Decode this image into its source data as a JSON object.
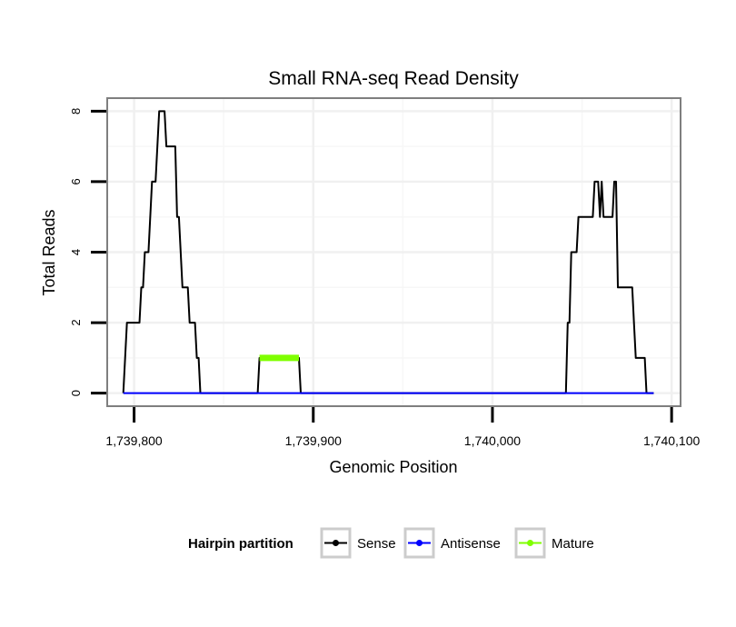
{
  "chart_data": {
    "type": "line",
    "title": "Small RNA-seq Read Density",
    "xlabel": "Genomic Position",
    "ylabel": "Total Reads",
    "xlim": [
      1739785,
      1740105
    ],
    "ylim": [
      -0.37,
      8.37
    ],
    "x_ticks": [
      1739800,
      1739900,
      1740000,
      1740100
    ],
    "x_tick_labels": [
      "1,739,800",
      "1,739,900",
      "1,740,000",
      "1,740,100"
    ],
    "y_ticks": [
      0,
      2,
      4,
      6,
      8
    ],
    "y_tick_labels": [
      "0",
      "2",
      "4",
      "6",
      "8"
    ],
    "grid": true,
    "legend": {
      "title": "Hairpin partition",
      "position": "bottom",
      "entries": [
        "Sense",
        "Antisense",
        "Mature"
      ]
    },
    "series": [
      {
        "name": "Sense",
        "color": "#000000",
        "points": [
          [
            1739794,
            0
          ],
          [
            1739795,
            1
          ],
          [
            1739796,
            2
          ],
          [
            1739798,
            2
          ],
          [
            1739803,
            2
          ],
          [
            1739804,
            3
          ],
          [
            1739805,
            3
          ],
          [
            1739806,
            4
          ],
          [
            1739808,
            4
          ],
          [
            1739810,
            6
          ],
          [
            1739812,
            6
          ],
          [
            1739813,
            7
          ],
          [
            1739814,
            8
          ],
          [
            1739817,
            8
          ],
          [
            1739818,
            7
          ],
          [
            1739823,
            7
          ],
          [
            1739824,
            5
          ],
          [
            1739825,
            5
          ],
          [
            1739827,
            3
          ],
          [
            1739830,
            3
          ],
          [
            1739831,
            2
          ],
          [
            1739834,
            2
          ],
          [
            1739835,
            1
          ],
          [
            1739836,
            1
          ],
          [
            1739837,
            0
          ],
          [
            1739869,
            0
          ],
          [
            1739870,
            1
          ],
          [
            1739892,
            1
          ],
          [
            1739893,
            0
          ],
          [
            1740041,
            0
          ],
          [
            1740042,
            2
          ],
          [
            1740043,
            2
          ],
          [
            1740044,
            4
          ],
          [
            1740047,
            4
          ],
          [
            1740048,
            5
          ],
          [
            1740056,
            5
          ],
          [
            1740057,
            6
          ],
          [
            1740059,
            6
          ],
          [
            1740060,
            5
          ],
          [
            1740061,
            6
          ],
          [
            1740062,
            5
          ],
          [
            1740067,
            5
          ],
          [
            1740068,
            6
          ],
          [
            1740069,
            6
          ],
          [
            1740070,
            3
          ],
          [
            1740078,
            3
          ],
          [
            1740079,
            2
          ],
          [
            1740080,
            1
          ],
          [
            1740085,
            1
          ],
          [
            1740086,
            0
          ],
          [
            1740090,
            0
          ]
        ]
      },
      {
        "name": "Antisense",
        "color": "#0000ff",
        "points": [
          [
            1739794,
            0
          ],
          [
            1740090,
            0
          ]
        ]
      },
      {
        "name": "Mature",
        "color": "#7fff00",
        "points": [
          [
            1739870,
            1
          ],
          [
            1739892,
            1
          ]
        ]
      }
    ]
  }
}
